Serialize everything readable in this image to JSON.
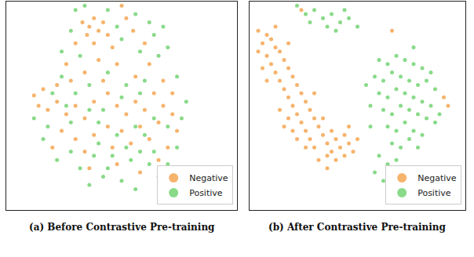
{
  "chart_data": [
    {
      "type": "scatter",
      "title": "(a) Before Contrastive Pre-training",
      "xlim": [
        0,
        100
      ],
      "ylim": [
        0,
        100
      ],
      "tick_labels": false,
      "legend": "lower right",
      "series": [
        {
          "name": "Negative",
          "color": "#f5a652",
          "x": [
            33,
            36,
            38,
            40,
            35,
            42,
            44,
            30,
            38,
            46,
            52,
            55,
            60,
            48,
            40,
            34,
            28,
            22,
            16,
            12,
            14,
            18,
            22,
            26,
            30,
            34,
            38,
            44,
            48,
            52,
            56,
            60,
            64,
            68,
            72,
            66,
            58,
            50,
            44,
            38,
            30,
            24,
            20,
            34,
            46,
            54,
            62,
            70,
            74,
            42,
            56,
            62,
            68,
            26,
            50,
            66,
            48,
            36,
            58,
            72
          ],
          "y": [
            90,
            88,
            92,
            86,
            84,
            90,
            84,
            80,
            80,
            78,
            92,
            86,
            80,
            70,
            72,
            66,
            62,
            60,
            58,
            55,
            50,
            48,
            52,
            46,
            50,
            44,
            52,
            56,
            50,
            46,
            52,
            48,
            56,
            50,
            46,
            42,
            40,
            38,
            40,
            36,
            34,
            38,
            30,
            28,
            30,
            32,
            34,
            30,
            38,
            62,
            64,
            70,
            62,
            70,
            98,
            24,
            22,
            20,
            18,
            56
          ]
        },
        {
          "name": "Positive",
          "color": "#74d374",
          "x": [
            30,
            34,
            44,
            48,
            56,
            62,
            64,
            68,
            70,
            66,
            58,
            50,
            32,
            28,
            24,
            36,
            30,
            44,
            52,
            60,
            74,
            78,
            76,
            70,
            64,
            58,
            50,
            42,
            36,
            28,
            18,
            12,
            16,
            22,
            28,
            32,
            38,
            42,
            46,
            50,
            54,
            58,
            62,
            66,
            70,
            74,
            40,
            48,
            56,
            60,
            20,
            24,
            40,
            52,
            64,
            44,
            36,
            56,
            72,
            26
          ],
          "y": [
            96,
            98,
            96,
            88,
            94,
            90,
            84,
            88,
            78,
            74,
            76,
            82,
            74,
            86,
            76,
            60,
            56,
            66,
            60,
            62,
            64,
            52,
            44,
            40,
            44,
            56,
            54,
            48,
            48,
            42,
            40,
            44,
            34,
            24,
            28,
            20,
            26,
            16,
            26,
            14,
            24,
            28,
            22,
            16,
            22,
            30,
            32,
            36,
            40,
            36,
            56,
            64,
            42,
            30,
            28,
            20,
            12,
            10,
            14,
            50
          ]
        }
      ]
    },
    {
      "type": "scatter",
      "title": "(b) After Contrastive Pre-training",
      "xlim": [
        0,
        100
      ],
      "ylim": [
        0,
        100
      ],
      "tick_labels": false,
      "legend": "lower right",
      "series": [
        {
          "name": "Negative",
          "color": "#f5a652",
          "x": [
            4,
            8,
            6,
            10,
            12,
            4,
            8,
            14,
            16,
            10,
            6,
            12,
            18,
            20,
            14,
            16,
            22,
            18,
            24,
            20,
            26,
            22,
            28,
            24,
            30,
            26,
            32,
            28,
            34,
            30,
            36,
            38,
            40,
            42,
            36,
            44,
            46,
            48,
            40,
            32,
            50,
            44,
            18,
            14,
            20,
            26,
            34,
            38,
            22,
            30,
            12,
            18,
            8,
            16,
            36,
            90,
            92,
            66,
            24,
            46
          ],
          "y": [
            86,
            84,
            80,
            82,
            78,
            76,
            74,
            76,
            72,
            70,
            68,
            66,
            68,
            64,
            62,
            58,
            60,
            54,
            56,
            50,
            52,
            46,
            48,
            42,
            44,
            38,
            40,
            34,
            36,
            30,
            32,
            38,
            34,
            30,
            26,
            36,
            32,
            28,
            24,
            24,
            34,
            26,
            44,
            48,
            38,
            30,
            44,
            28,
            34,
            56,
            88,
            80,
            62,
            40,
            20,
            54,
            50,
            86,
            96,
            40
          ]
        },
        {
          "name": "Positive",
          "color": "#74d374",
          "x": [
            22,
            26,
            30,
            34,
            38,
            42,
            46,
            28,
            36,
            44,
            50,
            40,
            60,
            64,
            68,
            72,
            76,
            80,
            58,
            62,
            66,
            70,
            74,
            78,
            82,
            86,
            60,
            64,
            68,
            72,
            76,
            80,
            84,
            62,
            66,
            70,
            74,
            78,
            82,
            86,
            64,
            68,
            72,
            76,
            80,
            66,
            70,
            74,
            78,
            60,
            64,
            58,
            62,
            68,
            56,
            56,
            84,
            88,
            76,
            54
          ],
          "y": [
            98,
            94,
            96,
            92,
            94,
            90,
            92,
            90,
            88,
            96,
            88,
            86,
            72,
            70,
            74,
            72,
            70,
            68,
            64,
            62,
            66,
            64,
            62,
            60,
            62,
            58,
            56,
            54,
            58,
            56,
            54,
            52,
            50,
            48,
            46,
            50,
            48,
            46,
            44,
            42,
            40,
            38,
            42,
            38,
            36,
            32,
            30,
            34,
            30,
            26,
            22,
            18,
            14,
            24,
            40,
            50,
            66,
            46,
            78,
            60
          ]
        }
      ]
    }
  ]
}
